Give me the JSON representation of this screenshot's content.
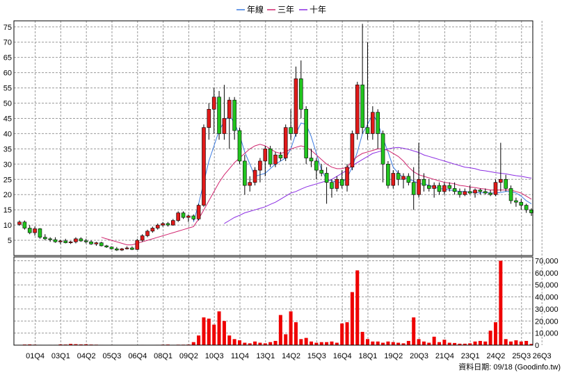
{
  "chart_data": {
    "type": "candlestick+volume",
    "legend": [
      {
        "name": "年線",
        "color": "#3b7ae0"
      },
      {
        "name": "三年",
        "color": "#d0246e"
      },
      {
        "name": "十年",
        "color": "#8a2be2"
      }
    ],
    "colors": {
      "up": "#e01a1a",
      "down": "#21c41e",
      "volume": "#ee0000"
    },
    "price_axis": {
      "min": 0,
      "max": 77,
      "ticks": [
        5,
        10,
        15,
        20,
        25,
        30,
        35,
        40,
        45,
        50,
        55,
        60,
        65,
        70,
        75
      ]
    },
    "volume_axis": {
      "min": 0,
      "max": 72000,
      "ticks": [
        0,
        10000,
        20000,
        30000,
        40000,
        50000,
        60000,
        70000
      ],
      "tick_labels": [
        "0",
        "10,000",
        "20,000",
        "30,000",
        "40,000",
        "50,000",
        "60,000",
        "70,000"
      ]
    },
    "x_axis": {
      "n_quarters": 101,
      "ticks": [
        {
          "label": "01Q4",
          "i": 3
        },
        {
          "label": "03Q1",
          "i": 8
        },
        {
          "label": "04Q2",
          "i": 13
        },
        {
          "label": "05Q3",
          "i": 18
        },
        {
          "label": "06Q4",
          "i": 23
        },
        {
          "label": "08Q1",
          "i": 28
        },
        {
          "label": "09Q2",
          "i": 33
        },
        {
          "label": "10Q3",
          "i": 38
        },
        {
          "label": "11Q4",
          "i": 43
        },
        {
          "label": "13Q1",
          "i": 48
        },
        {
          "label": "14Q2",
          "i": 53
        },
        {
          "label": "15Q3",
          "i": 58
        },
        {
          "label": "16Q4",
          "i": 63
        },
        {
          "label": "18Q1",
          "i": 68
        },
        {
          "label": "19Q2",
          "i": 73
        },
        {
          "label": "20Q3",
          "i": 78
        },
        {
          "label": "21Q4",
          "i": 83
        },
        {
          "label": "23Q1",
          "i": 88
        },
        {
          "label": "24Q2",
          "i": 93
        },
        {
          "label": "25Q3",
          "i": 98
        },
        {
          "label": "26Q3",
          "i": 102
        }
      ]
    },
    "footer": "資料日期: 09/18  (Goodinfo.tw)",
    "candles": [
      [
        10.2,
        11.5,
        9.8,
        11.0
      ],
      [
        11.0,
        11.5,
        8.5,
        9.0
      ],
      [
        9.0,
        10.0,
        7.0,
        7.5
      ],
      [
        7.5,
        9.5,
        6.5,
        8.8
      ],
      [
        8.8,
        9.0,
        5.5,
        6.0
      ],
      [
        6.0,
        7.0,
        5.0,
        5.5
      ],
      [
        5.5,
        6.0,
        4.5,
        5.2
      ],
      [
        5.2,
        6.0,
        4.2,
        4.5
      ],
      [
        4.5,
        5.2,
        3.8,
        4.8
      ],
      [
        4.8,
        5.5,
        4.0,
        4.2
      ],
      [
        4.2,
        4.8,
        3.8,
        4.5
      ],
      [
        4.5,
        6.0,
        4.0,
        5.5
      ],
      [
        5.5,
        6.0,
        4.5,
        4.8
      ],
      [
        4.8,
        5.5,
        4.0,
        4.5
      ],
      [
        4.5,
        5.0,
        3.5,
        3.8
      ],
      [
        3.8,
        4.5,
        3.2,
        4.2
      ],
      [
        4.2,
        4.5,
        3.0,
        3.2
      ],
      [
        3.2,
        3.5,
        2.5,
        2.8
      ],
      [
        2.8,
        3.0,
        2.0,
        2.2
      ],
      [
        2.2,
        2.8,
        1.5,
        1.8
      ],
      [
        1.8,
        2.5,
        1.5,
        2.2
      ],
      [
        2.2,
        3.0,
        2.0,
        2.5
      ],
      [
        2.5,
        3.0,
        1.8,
        2.0
      ],
      [
        2.0,
        5.5,
        1.8,
        5.0
      ],
      [
        5.0,
        7.0,
        4.5,
        6.5
      ],
      [
        6.5,
        8.5,
        6.0,
        8.0
      ],
      [
        8.0,
        9.5,
        7.5,
        9.0
      ],
      [
        9.0,
        10.5,
        8.5,
        10.0
      ],
      [
        10.0,
        11.0,
        9.5,
        10.5
      ],
      [
        10.5,
        11.0,
        9.5,
        10.0
      ],
      [
        10.0,
        12.0,
        9.8,
        11.5
      ],
      [
        11.5,
        14.5,
        11.0,
        14.0
      ],
      [
        14.0,
        14.5,
        12.0,
        12.5
      ],
      [
        12.5,
        13.5,
        11.0,
        13.0
      ],
      [
        13.0,
        13.5,
        11.5,
        12.0
      ],
      [
        12.0,
        17.0,
        11.5,
        16.5
      ],
      [
        16.5,
        43.0,
        16.0,
        42.0
      ],
      [
        42.0,
        50.0,
        38.0,
        48.0
      ],
      [
        48.0,
        55.0,
        40.0,
        52.0
      ],
      [
        52.0,
        54.0,
        38.0,
        40.0
      ],
      [
        40.0,
        56.0,
        38.0,
        45.0
      ],
      [
        45.0,
        52.0,
        35.0,
        51.0
      ],
      [
        51.0,
        52.0,
        38.0,
        41.0
      ],
      [
        41.0,
        42.0,
        30.0,
        31.0
      ],
      [
        31.0,
        33.0,
        20.0,
        23.0
      ],
      [
        23.0,
        26.0,
        21.0,
        24.0
      ],
      [
        24.0,
        29.0,
        23.0,
        28.0
      ],
      [
        28.0,
        32.0,
        24.0,
        31.0
      ],
      [
        31.0,
        36.0,
        26.0,
        35.0
      ],
      [
        35.0,
        36.0,
        29.0,
        30.0
      ],
      [
        30.0,
        34.0,
        29.0,
        33.0
      ],
      [
        33.0,
        34.0,
        31.0,
        32.0
      ],
      [
        32.0,
        43.0,
        31.0,
        42.0
      ],
      [
        42.0,
        48.0,
        38.0,
        40.0
      ],
      [
        40.0,
        62.0,
        39.0,
        58.0
      ],
      [
        58.0,
        64.0,
        45.0,
        48.0
      ],
      [
        48.0,
        49.0,
        30.0,
        32.0
      ],
      [
        32.0,
        35.0,
        29.0,
        31.0
      ],
      [
        31.0,
        32.0,
        25.0,
        28.0
      ],
      [
        28.0,
        30.0,
        26.0,
        27.0
      ],
      [
        27.0,
        29.0,
        17.0,
        24.0
      ],
      [
        24.0,
        25.0,
        19.0,
        22.0
      ],
      [
        22.0,
        26.0,
        21.0,
        25.0
      ],
      [
        25.0,
        28.0,
        22.0,
        23.0
      ],
      [
        23.0,
        30.0,
        21.0,
        29.0
      ],
      [
        29.0,
        41.0,
        28.0,
        40.0
      ],
      [
        40.0,
        57.0,
        38.0,
        56.0
      ],
      [
        56.0,
        76.0,
        40.0,
        42.0
      ],
      [
        42.0,
        70.0,
        38.0,
        40.0
      ],
      [
        40.0,
        49.0,
        38.0,
        47.0
      ],
      [
        47.0,
        48.0,
        35.0,
        40.0
      ],
      [
        40.0,
        41.0,
        24.0,
        30.0
      ],
      [
        30.0,
        31.0,
        22.0,
        23.0
      ],
      [
        23.0,
        28.0,
        22.0,
        27.0
      ],
      [
        27.0,
        28.0,
        23.0,
        25.0
      ],
      [
        25.0,
        27.0,
        22.0,
        26.0
      ],
      [
        26.0,
        27.0,
        23.0,
        24.0
      ],
      [
        24.0,
        29.0,
        15.0,
        20.0
      ],
      [
        20.0,
        37.0,
        19.0,
        25.0
      ],
      [
        25.0,
        27.0,
        21.0,
        23.0
      ],
      [
        23.0,
        25.0,
        21.0,
        22.0
      ],
      [
        22.0,
        24.0,
        19.0,
        23.0
      ],
      [
        23.0,
        24.0,
        20.0,
        21.0
      ],
      [
        21.0,
        24.0,
        20.0,
        23.0
      ],
      [
        23.0,
        24.0,
        21.0,
        22.0
      ],
      [
        22.0,
        24.0,
        20.0,
        21.0
      ],
      [
        21.0,
        22.0,
        19.0,
        20.0
      ],
      [
        20.0,
        22.0,
        19.5,
        21.0
      ],
      [
        21.0,
        23.0,
        20.0,
        20.5
      ],
      [
        20.5,
        22.0,
        19.0,
        21.5
      ],
      [
        21.5,
        22.0,
        20.0,
        21.0
      ],
      [
        21.0,
        22.0,
        20.0,
        20.5
      ],
      [
        20.5,
        21.5,
        19.5,
        20.0
      ],
      [
        20.0,
        25.0,
        19.5,
        24.0
      ],
      [
        24.0,
        37.0,
        21.0,
        25.0
      ],
      [
        25.0,
        26.5,
        21.0,
        22.0
      ],
      [
        22.0,
        23.0,
        17.0,
        18.0
      ],
      [
        18.0,
        19.0,
        16.0,
        17.5
      ],
      [
        17.5,
        18.5,
        15.0,
        16.5
      ],
      [
        16.5,
        17.0,
        14.0,
        15.0
      ],
      [
        15.0,
        15.5,
        13.0,
        14.0
      ]
    ],
    "volume": [
      300,
      500,
      600,
      400,
      300,
      200,
      300,
      300,
      600,
      500,
      1000,
      800,
      600,
      700,
      500,
      400,
      300,
      200,
      300,
      200,
      200,
      200,
      300,
      200,
      300,
      200,
      200,
      300,
      400,
      500,
      300,
      400,
      400,
      500,
      2500,
      8000,
      23000,
      22000,
      17000,
      28000,
      20000,
      8000,
      5000,
      4000,
      2000,
      1500,
      3000,
      2000,
      1500,
      2500,
      3500,
      25000,
      9000,
      28000,
      19000,
      5000,
      6000,
      3000,
      2000,
      2500,
      2500,
      3000,
      2000,
      18000,
      19000,
      44000,
      62000,
      11000,
      5000,
      3000,
      3000,
      2000,
      3000,
      2500,
      2000,
      1500,
      3500,
      23000,
      5000,
      3000,
      2000,
      7000,
      2500,
      4500,
      2000,
      1800,
      1200,
      1200,
      1500,
      3000,
      3500,
      3000,
      12000,
      19000,
      70000,
      5000,
      3000,
      4000,
      3000,
      3500,
      1000
    ],
    "ma_year": [
      null,
      null,
      null,
      null,
      null,
      null,
      null,
      null,
      null,
      null,
      null,
      null,
      null,
      null,
      null,
      null,
      null,
      null,
      null,
      null,
      null,
      null,
      null,
      null,
      null,
      null,
      null,
      null,
      null,
      null,
      null,
      null,
      null,
      null,
      11.0,
      17.0,
      24.0,
      31.0,
      36.0,
      41.0,
      44.0,
      46.0,
      43.5,
      39.5,
      34.0,
      30.0,
      26.0,
      26.5,
      27.0,
      28.5,
      30.0,
      31.0,
      32.0,
      35.0,
      40.0,
      43.5,
      43.0,
      39.0,
      33.5,
      28.0,
      25.0,
      24.5,
      24.0,
      24.0,
      25.5,
      29.0,
      34.0,
      40.0,
      43.0,
      46.5,
      43.5,
      38.5,
      34.0,
      29.0,
      27.0,
      25.5,
      25.0,
      24.5,
      23.5,
      23.5,
      23.0,
      22.5,
      22.0,
      21.8,
      21.5,
      21.3,
      21.0,
      21.0,
      20.8,
      20.8,
      20.5,
      20.8,
      20.5,
      20.5,
      20.7,
      21.0,
      21.0,
      20.5,
      19.5,
      18.0,
      17.0
    ],
    "ma_3year": [
      null,
      null,
      null,
      null,
      null,
      null,
      null,
      null,
      null,
      null,
      null,
      null,
      null,
      null,
      null,
      null,
      6.0,
      5.5,
      5.0,
      4.5,
      4.0,
      3.5,
      3.5,
      4.0,
      4.5,
      5.0,
      5.5,
      6.0,
      6.5,
      7.0,
      7.5,
      8.0,
      8.5,
      9.0,
      9.5,
      12.0,
      15.0,
      18.0,
      21.0,
      24.0,
      26.5,
      28.5,
      30.5,
      32.0,
      33.5,
      35.0,
      36.0,
      36.5,
      36.0,
      35.0,
      34.0,
      33.5,
      34.0,
      35.0,
      35.5,
      36.0,
      35.5,
      34.5,
      33.0,
      31.5,
      30.0,
      29.0,
      28.5,
      28.5,
      29.0,
      31.0,
      32.5,
      33.5,
      34.0,
      34.5,
      35.0,
      35.0,
      34.5,
      33.5,
      32.5,
      31.0,
      29.0,
      27.5,
      26.5,
      26.0,
      25.5,
      25.0,
      24.5,
      24.0,
      23.8,
      23.5,
      23.0,
      22.8,
      22.5,
      22.3,
      22.0,
      21.8,
      21.5,
      21.5,
      21.5,
      21.5,
      21.5,
      21.0,
      20.5,
      19.5,
      18.5
    ],
    "ma_10year": [
      null,
      null,
      null,
      null,
      null,
      null,
      null,
      null,
      null,
      null,
      null,
      null,
      null,
      null,
      null,
      null,
      null,
      null,
      null,
      null,
      null,
      null,
      null,
      null,
      null,
      null,
      null,
      null,
      null,
      null,
      null,
      null,
      null,
      null,
      null,
      null,
      null,
      null,
      null,
      null,
      10.5,
      11.5,
      12.5,
      13.2,
      14.0,
      14.5,
      15.0,
      15.5,
      16.0,
      16.8,
      17.5,
      18.5,
      19.5,
      20.5,
      21.0,
      21.8,
      22.5,
      23.0,
      23.5,
      24.0,
      24.5,
      25.0,
      26.0,
      27.0,
      28.0,
      29.5,
      30.5,
      31.5,
      32.5,
      33.5,
      34.0,
      34.5,
      35.0,
      35.3,
      35.5,
      35.2,
      34.8,
      34.3,
      33.8,
      33.0,
      32.5,
      32.0,
      31.5,
      31.0,
      30.5,
      30.0,
      29.5,
      29.0,
      28.8,
      28.5,
      28.0,
      27.8,
      27.5,
      27.2,
      27.0,
      26.8,
      26.5,
      26.2,
      26.0,
      25.7,
      25.4
    ]
  }
}
